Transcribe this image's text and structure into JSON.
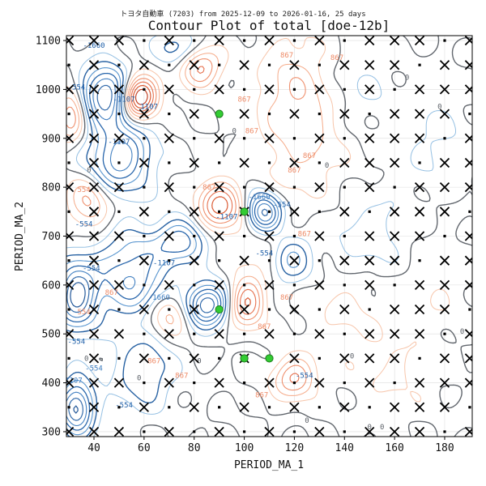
{
  "chart_data": {
    "type": "contour",
    "subtitle": "トヨタ自動車 (7203) from 2025-12-09 to 2026-01-16, 25 days",
    "title": "Contour Plot of total [doe-12b]",
    "xlabel": "PERIOD_MA_1",
    "ylabel": "PERIOD_MA_2",
    "xlim": [
      29,
      191
    ],
    "ylim": [
      290,
      1110
    ],
    "x_ticks": [
      40,
      60,
      80,
      100,
      120,
      140,
      160,
      180
    ],
    "y_ticks": [
      300,
      400,
      500,
      600,
      700,
      800,
      900,
      1000,
      1100
    ],
    "grid": true,
    "contour_labels": [
      "-554",
      "-1107",
      "-1660",
      "0",
      "867",
      "554",
      "1107"
    ],
    "colors": {
      "negative": "#1f5fa8",
      "negative_light": "#6aa7d6",
      "zero": "#555555",
      "positive": "#d9532b",
      "positive_light": "#f4a582",
      "marker_x": "#000000",
      "marker_best": "#33cc33"
    },
    "sample_grid": {
      "x": [
        30,
        40,
        50,
        60,
        70,
        80,
        90,
        100,
        110,
        120,
        130,
        140,
        150,
        160,
        170,
        180,
        190
      ],
      "y": [
        300,
        350,
        400,
        450,
        500,
        550,
        600,
        650,
        700,
        750,
        800,
        850,
        900,
        950,
        1000,
        1050,
        1100
      ]
    },
    "best_points": [
      {
        "x": 90,
        "y": 950
      },
      {
        "x": 100,
        "y": 750
      },
      {
        "x": 90,
        "y": 550
      },
      {
        "x": 100,
        "y": 450
      },
      {
        "x": 110,
        "y": 450
      }
    ]
  }
}
